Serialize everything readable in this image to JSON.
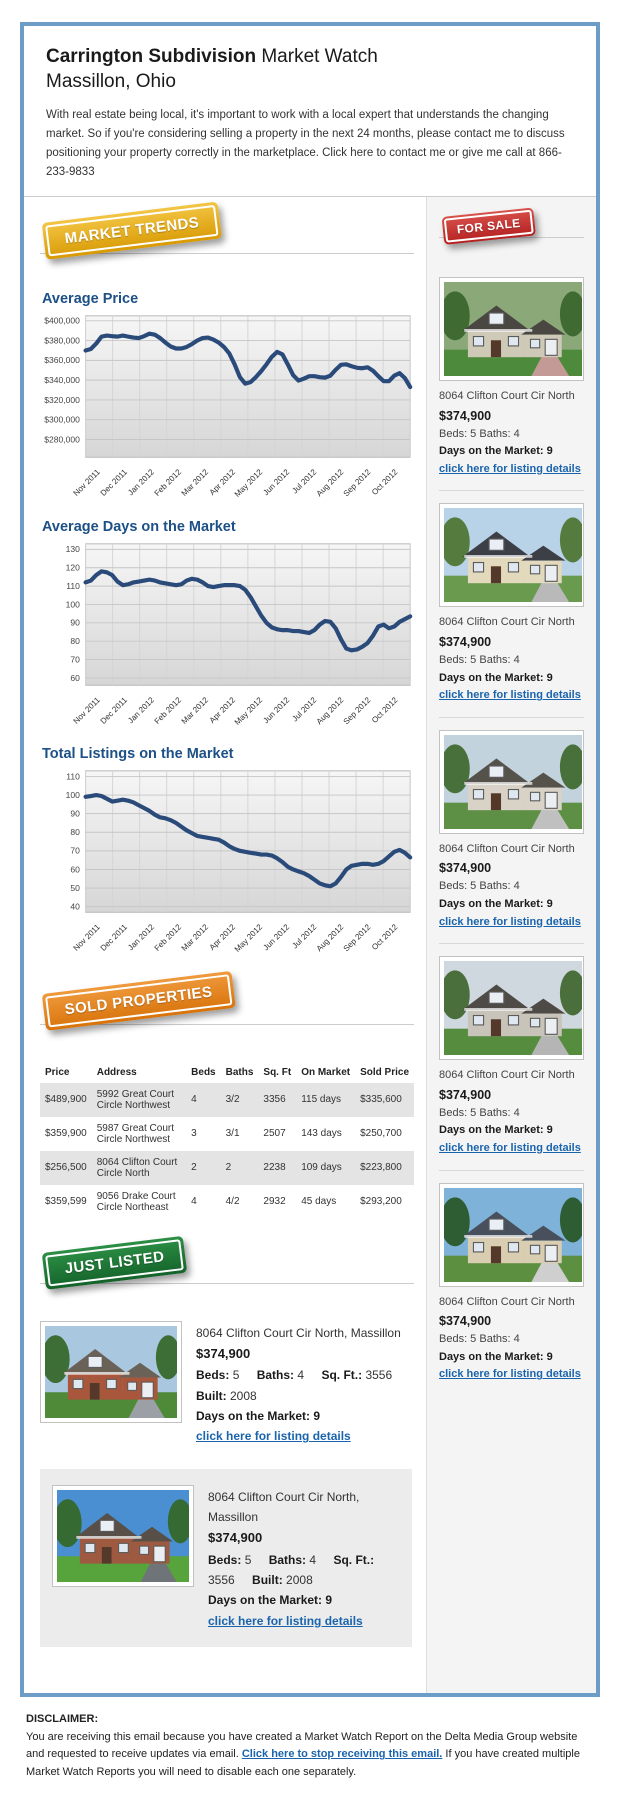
{
  "colors": {
    "frame_blue": "#6d9cc7",
    "heading_blue": "#1c5086",
    "link_blue": "#1a64ad",
    "chart_line": "#2a4a7a",
    "badge_yellow": "#e9a81c",
    "badge_red": "#c93131",
    "badge_orange": "#e07f1f",
    "badge_green": "#1e7c35"
  },
  "header": {
    "title_bold": "Carrington Subdivision",
    "title_rest": " Market Watch",
    "title_line2": "Massillon, Ohio",
    "intro": "With real estate being local, it's important to work with a local expert that understands the changing market. So if you're considering selling a property in the next 24 months, please contact me to discuss positioning your property correctly in the marketplace. Click here to contact me or give me call at 866-233-9833"
  },
  "badges": {
    "market_trends": {
      "label": "MARKET TRENDS"
    },
    "for_sale": {
      "label": "FOR SALE"
    },
    "sold_properties": {
      "label": "SOLD PROPERTIES"
    },
    "just_listed": {
      "label": "JUST LISTED"
    }
  },
  "chart_data": [
    {
      "type": "line",
      "title": "Average Price",
      "xlabel": "",
      "ylabel": "",
      "x_categories": [
        "Nov 2011",
        "Dec 2011",
        "Jan 2012",
        "Feb 2012",
        "Mar 2012",
        "Apr 2012",
        "May 2012",
        "Jun 2012",
        "Jul 2012",
        "Aug 2012",
        "Sep 2012",
        "Oct 2012"
      ],
      "yticks": [
        280000,
        300000,
        320000,
        340000,
        360000,
        380000,
        400000
      ],
      "ytick_labels": [
        "$280,000",
        "$300,000",
        "$320,000",
        "$340,000",
        "$360,000",
        "$380,000",
        "$400,000"
      ],
      "ylim": [
        262000,
        405000
      ],
      "grid": true,
      "legend": "none",
      "values": [
        370000,
        371500,
        377000,
        384000,
        385000,
        384500,
        384000,
        385000,
        384000,
        383000,
        382500,
        384500,
        387000,
        386000,
        382500,
        378000,
        374000,
        372000,
        372000,
        373500,
        376500,
        380000,
        382500,
        383000,
        381000,
        378000,
        373500,
        367000,
        356000,
        343000,
        336500,
        338000,
        343000,
        349000,
        356000,
        363500,
        368500,
        366000,
        356000,
        345000,
        339500,
        341500,
        344000,
        344000,
        343000,
        342500,
        344500,
        350500,
        355500,
        356000,
        354000,
        352500,
        352000,
        353000,
        349500,
        344000,
        339000,
        339000,
        344500,
        347000,
        342000,
        333000
      ]
    },
    {
      "type": "line",
      "title": "Average Days on the Market",
      "xlabel": "",
      "ylabel": "",
      "x_categories": [
        "Nov 2011",
        "Dec 2011",
        "Jan 2012",
        "Feb 2012",
        "Mar 2012",
        "Apr 2012",
        "May 2012",
        "Jun 2012",
        "Jul 2012",
        "Aug 2012",
        "Sep 2012",
        "Oct 2012"
      ],
      "yticks": [
        60,
        70,
        80,
        90,
        100,
        110,
        120,
        130
      ],
      "ytick_labels": [
        "60",
        "70",
        "80",
        "90",
        "100",
        "110",
        "120",
        "130"
      ],
      "ylim": [
        56,
        133
      ],
      "grid": true,
      "legend": "none",
      "values": [
        112,
        113,
        116,
        118,
        117.5,
        116,
        112.5,
        110.5,
        111,
        112,
        112.5,
        113,
        113.5,
        113,
        112,
        111.5,
        111,
        110.5,
        111,
        113,
        114,
        113.5,
        112,
        110,
        109.5,
        110,
        110.5,
        110.5,
        110.5,
        110,
        108,
        104,
        99,
        94,
        90,
        87.5,
        86.5,
        86,
        86,
        85.5,
        85.5,
        85,
        84.5,
        86,
        89,
        91,
        90.5,
        87,
        81,
        76,
        75,
        75.5,
        77,
        79,
        83,
        88,
        89,
        87,
        88,
        90.5,
        92,
        93.5
      ]
    },
    {
      "type": "line",
      "title": "Total Listings on the Market",
      "xlabel": "",
      "ylabel": "",
      "x_categories": [
        "Nov 2011",
        "Dec 2011",
        "Jan 2012",
        "Feb 2012",
        "Mar 2012",
        "Apr 2012",
        "May 2012",
        "Jun 2012",
        "Jul 2012",
        "Aug 2012",
        "Sep 2012",
        "Oct 2012"
      ],
      "yticks": [
        40,
        50,
        60,
        70,
        80,
        90,
        100,
        110
      ],
      "ytick_labels": [
        "40",
        "50",
        "60",
        "70",
        "80",
        "90",
        "100",
        "110"
      ],
      "ylim": [
        37,
        113
      ],
      "grid": true,
      "legend": "none",
      "values": [
        99,
        99.5,
        100,
        99.5,
        98,
        96.5,
        97,
        97.5,
        97,
        96,
        94.5,
        93,
        91.5,
        89.5,
        88,
        87.5,
        86.5,
        85,
        83,
        81,
        79.5,
        78,
        77.5,
        77,
        76.5,
        76,
        74.5,
        72.5,
        71,
        70,
        69.5,
        69,
        68.5,
        68,
        68,
        67.5,
        66,
        64,
        61.5,
        60,
        59,
        58,
        56.5,
        54.5,
        52.5,
        51.5,
        51,
        52.5,
        56,
        60,
        62,
        62.5,
        63,
        63,
        62.5,
        63,
        64.5,
        67,
        69.5,
        70.5,
        69,
        66.5
      ]
    }
  ],
  "sidebar": {
    "listings": [
      {
        "address": "8064 Clifton Court Cir North",
        "price": "$374,900",
        "beds_baths": "Beds: 5 Baths: 4",
        "days": "Days on the Market: 9",
        "link": "click here for listing details"
      },
      {
        "address": "8064 Clifton Court Cir North",
        "price": "$374,900",
        "beds_baths": "Beds: 5 Baths: 4",
        "days": "Days on the Market: 9",
        "link": "click here for listing details"
      },
      {
        "address": "8064 Clifton Court Cir North",
        "price": "$374,900",
        "beds_baths": "Beds: 5 Baths: 4",
        "days": "Days on the Market: 9",
        "link": "click here for listing details"
      },
      {
        "address": "8064 Clifton Court Cir North",
        "price": "$374,900",
        "beds_baths": "Beds: 5 Baths: 4",
        "days": "Days on the Market: 9",
        "link": "click here for listing details"
      },
      {
        "address": "8064 Clifton Court Cir North",
        "price": "$374,900",
        "beds_baths": "Beds: 5 Baths: 4",
        "days": "Days on the Market: 9",
        "link": "click here for listing details"
      }
    ]
  },
  "sold_table": {
    "headers": [
      "Price",
      "Address",
      "Beds",
      "Baths",
      "Sq. Ft",
      "On Market",
      "Sold Price"
    ],
    "rows": [
      [
        "$489,900",
        "5992 Great Court Circle Northwest",
        "4",
        "3/2",
        "3356",
        "115 days",
        "$335,600"
      ],
      [
        "$359,900",
        "5987 Great Court Circle Northwest",
        "3",
        "3/1",
        "2507",
        "143 days",
        "$250,700"
      ],
      [
        "$256,500",
        "8064 Clifton Court Circle North",
        "2",
        "2",
        "2238",
        "109 days",
        "$223,800"
      ],
      [
        "$359,599",
        "9056 Drake Court Circle Northeast",
        "4",
        "4/2",
        "2932",
        "45 days",
        "$293,200"
      ]
    ]
  },
  "just_listed_items": [
    {
      "address": "8064 Clifton Court Cir North, Massillon",
      "price": "$374,900",
      "specs": [
        {
          "label": "Beds:",
          "value": "5"
        },
        {
          "label": "Baths:",
          "value": "4"
        },
        {
          "label": "Sq. Ft.:",
          "value": "3556"
        },
        {
          "label": "Built:",
          "value": "2008"
        }
      ],
      "days": "Days on the Market: 9",
      "link": "click here for listing details"
    },
    {
      "address": "8064 Clifton Court Cir North, Massillon",
      "price": "$374,900",
      "specs": [
        {
          "label": "Beds:",
          "value": "5"
        },
        {
          "label": "Baths:",
          "value": "4"
        },
        {
          "label": "Sq. Ft.:",
          "value": "3556"
        },
        {
          "label": "Built:",
          "value": "2008"
        }
      ],
      "days": "Days on the Market: 9",
      "link": "click here for listing details"
    }
  ],
  "disclaimer": {
    "heading": "DISCLAIMER:",
    "body_before": "You are receiving this email because you have created a Market Watch Report on the Delta Media Group website and requested to receive updates via email. ",
    "link_text": "Click here to stop receiving this email.",
    "body_after": " If you have created multiple Market Watch Reports you will need to disable each one separately."
  }
}
